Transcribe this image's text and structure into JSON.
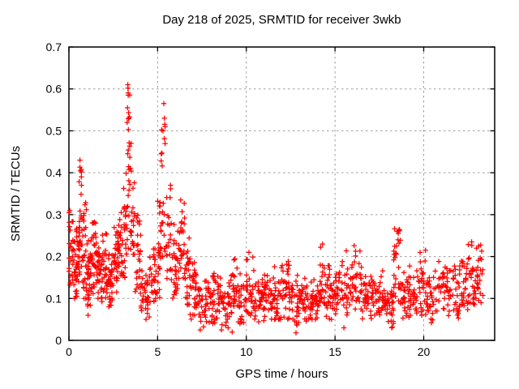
{
  "title": "Day 218 of 2025, SRMTID for receiver 3wkb",
  "chart_data": {
    "type": "scatter",
    "title": "Day 218 of 2025, SRMTID for receiver 3wkb",
    "xlabel": "GPS time / hours",
    "ylabel": "SRMTID / TECUs",
    "xlim": [
      0,
      24
    ],
    "ylim": [
      0,
      0.7
    ],
    "xticks": [
      0,
      5,
      10,
      15,
      20
    ],
    "xtick_labels": [
      "0",
      "5",
      "10",
      "15",
      "20"
    ],
    "yticks": [
      0,
      0.1,
      0.2,
      0.3,
      0.4,
      0.5,
      0.6,
      0.7
    ],
    "ytick_labels": [
      "0",
      "0.1",
      "0.2",
      "0.3",
      "0.4",
      "0.5",
      "0.6",
      "0.7"
    ],
    "grid": true,
    "legend": "none",
    "marker": "plus",
    "marker_color": "#ff0000",
    "grid_color": "#9c9c9c",
    "border_color": "#000000",
    "series_name": "SRMTID",
    "peak_points": [
      [
        0.05,
        0.31
      ],
      [
        0.62,
        0.43
      ],
      [
        0.66,
        0.405
      ],
      [
        0.7,
        0.39
      ],
      [
        1.08,
        0.06
      ],
      [
        2.95,
        0.305
      ],
      [
        3.28,
        0.52
      ],
      [
        3.3,
        0.555
      ],
      [
        3.32,
        0.61
      ],
      [
        3.34,
        0.585
      ],
      [
        3.38,
        0.53
      ],
      [
        3.5,
        0.47
      ],
      [
        5.3,
        0.5
      ],
      [
        5.35,
        0.565
      ],
      [
        5.38,
        0.53
      ],
      [
        5.42,
        0.51
      ],
      [
        6.3,
        0.335
      ],
      [
        7.4,
        0.025
      ],
      [
        8.6,
        0.025
      ],
      [
        9.2,
        0.02
      ],
      [
        10.15,
        0.21
      ],
      [
        12.8,
        0.018
      ],
      [
        14.3,
        0.23
      ],
      [
        15.5,
        0.03
      ],
      [
        18.2,
        0.03
      ],
      [
        18.5,
        0.26
      ],
      [
        18.55,
        0.24
      ],
      [
        20.1,
        0.215
      ],
      [
        22.7,
        0.235
      ],
      [
        23.1,
        0.225
      ]
    ],
    "envelope_bins": [
      [
        0.0,
        0.3,
        0.13,
        0.31,
        0.21,
        30
      ],
      [
        0.3,
        0.6,
        0.1,
        0.3,
        0.18,
        34
      ],
      [
        0.55,
        0.78,
        0.14,
        0.43,
        0.26,
        26
      ],
      [
        0.78,
        1.05,
        0.1,
        0.33,
        0.19,
        30
      ],
      [
        1.05,
        1.3,
        0.08,
        0.25,
        0.16,
        34
      ],
      [
        1.3,
        1.55,
        0.11,
        0.32,
        0.2,
        26
      ],
      [
        1.55,
        1.85,
        0.1,
        0.24,
        0.16,
        30
      ],
      [
        1.85,
        2.15,
        0.09,
        0.26,
        0.17,
        30
      ],
      [
        2.15,
        2.5,
        0.08,
        0.22,
        0.14,
        34
      ],
      [
        2.5,
        2.75,
        0.1,
        0.28,
        0.18,
        26
      ],
      [
        2.75,
        3.05,
        0.12,
        0.31,
        0.2,
        28
      ],
      [
        3.05,
        3.28,
        0.15,
        0.45,
        0.27,
        24
      ],
      [
        3.28,
        3.48,
        0.2,
        0.61,
        0.38,
        24
      ],
      [
        3.48,
        3.72,
        0.15,
        0.47,
        0.29,
        22
      ],
      [
        3.72,
        4.05,
        0.1,
        0.33,
        0.19,
        26
      ],
      [
        4.05,
        4.55,
        0.05,
        0.18,
        0.1,
        36
      ],
      [
        4.55,
        4.88,
        0.06,
        0.22,
        0.13,
        28
      ],
      [
        4.88,
        5.18,
        0.1,
        0.35,
        0.2,
        26
      ],
      [
        5.18,
        5.48,
        0.2,
        0.57,
        0.33,
        22
      ],
      [
        5.48,
        5.78,
        0.14,
        0.4,
        0.24,
        22
      ],
      [
        5.78,
        6.12,
        0.1,
        0.28,
        0.17,
        26
      ],
      [
        6.12,
        6.52,
        0.12,
        0.33,
        0.22,
        30
      ],
      [
        6.52,
        6.82,
        0.08,
        0.25,
        0.15,
        26
      ],
      [
        6.82,
        7.2,
        0.05,
        0.2,
        0.11,
        30
      ],
      [
        7.2,
        7.65,
        0.03,
        0.13,
        0.08,
        24
      ],
      [
        7.65,
        8.1,
        0.04,
        0.15,
        0.09,
        30
      ],
      [
        8.1,
        8.6,
        0.04,
        0.16,
        0.1,
        32
      ],
      [
        8.6,
        9.1,
        0.03,
        0.14,
        0.08,
        32
      ],
      [
        9.1,
        9.55,
        0.05,
        0.2,
        0.11,
        28
      ],
      [
        9.55,
        10.0,
        0.04,
        0.16,
        0.09,
        30
      ],
      [
        10.0,
        10.45,
        0.06,
        0.21,
        0.12,
        28
      ],
      [
        10.45,
        11.0,
        0.04,
        0.16,
        0.1,
        34
      ],
      [
        11.0,
        11.5,
        0.05,
        0.17,
        0.1,
        32
      ],
      [
        11.5,
        12.0,
        0.05,
        0.18,
        0.11,
        32
      ],
      [
        12.0,
        12.5,
        0.05,
        0.19,
        0.12,
        32
      ],
      [
        12.5,
        13.0,
        0.03,
        0.16,
        0.09,
        32
      ],
      [
        13.0,
        13.5,
        0.04,
        0.15,
        0.09,
        32
      ],
      [
        13.5,
        14.0,
        0.05,
        0.17,
        0.1,
        32
      ],
      [
        14.0,
        14.5,
        0.06,
        0.23,
        0.12,
        30
      ],
      [
        14.5,
        15.0,
        0.05,
        0.18,
        0.1,
        30
      ],
      [
        15.0,
        15.5,
        0.06,
        0.2,
        0.12,
        30
      ],
      [
        15.5,
        16.0,
        0.06,
        0.22,
        0.13,
        30
      ],
      [
        16.0,
        16.5,
        0.07,
        0.23,
        0.13,
        30
      ],
      [
        16.5,
        17.0,
        0.05,
        0.17,
        0.1,
        30
      ],
      [
        17.0,
        17.5,
        0.04,
        0.16,
        0.1,
        30
      ],
      [
        17.5,
        18.0,
        0.05,
        0.18,
        0.1,
        30
      ],
      [
        18.0,
        18.3,
        0.03,
        0.13,
        0.07,
        20
      ],
      [
        18.3,
        18.7,
        0.08,
        0.28,
        0.15,
        28
      ],
      [
        18.7,
        19.2,
        0.05,
        0.18,
        0.11,
        30
      ],
      [
        19.2,
        19.7,
        0.06,
        0.19,
        0.11,
        30
      ],
      [
        19.7,
        20.2,
        0.06,
        0.21,
        0.12,
        30
      ],
      [
        20.2,
        20.8,
        0.04,
        0.17,
        0.1,
        32
      ],
      [
        20.8,
        21.4,
        0.06,
        0.2,
        0.12,
        32
      ],
      [
        21.4,
        22.0,
        0.05,
        0.18,
        0.11,
        32
      ],
      [
        22.0,
        22.5,
        0.07,
        0.2,
        0.13,
        30
      ],
      [
        22.5,
        23.0,
        0.08,
        0.23,
        0.15,
        30
      ],
      [
        23.0,
        23.35,
        0.09,
        0.23,
        0.15,
        22
      ]
    ]
  }
}
